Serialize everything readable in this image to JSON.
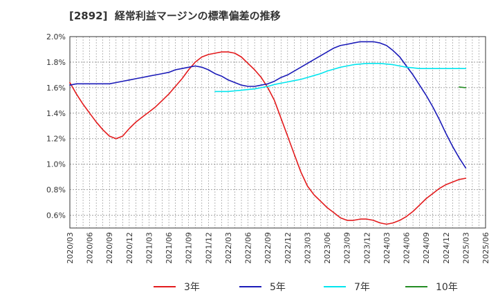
{
  "chart_data": {
    "type": "line",
    "title": "[2892]  経常利益マージンの標準偏差の推移",
    "xlabel": "",
    "ylabel": "",
    "ylim": [
      0.5,
      2.0
    ],
    "y_ticks": [
      0.6,
      0.8,
      1.0,
      1.2,
      1.4,
      1.6,
      1.8,
      2.0
    ],
    "y_tick_labels": [
      "0.6%",
      "0.8%",
      "1.0%",
      "1.2%",
      "1.4%",
      "1.6%",
      "1.8%",
      "2.0%"
    ],
    "x_tick_labels": [
      "2020/03",
      "2020/06",
      "2020/09",
      "2020/12",
      "2021/03",
      "2021/06",
      "2021/09",
      "2021/12",
      "2022/03",
      "2022/06",
      "2022/09",
      "2022/12",
      "2023/03",
      "2023/06",
      "2023/09",
      "2023/12",
      "2024/03",
      "2024/06",
      "2024/09",
      "2024/12",
      "2025/03",
      "2025/06"
    ],
    "grid": true,
    "legend_position": "bottom",
    "series": [
      {
        "name": "3年",
        "color": "#e31a1c",
        "x": [
          "2020/03",
          "2020/04",
          "2020/05",
          "2020/06",
          "2020/07",
          "2020/08",
          "2020/09",
          "2020/10",
          "2020/11",
          "2020/12",
          "2021/01",
          "2021/02",
          "2021/03",
          "2021/04",
          "2021/05",
          "2021/06",
          "2021/07",
          "2021/08",
          "2021/09",
          "2021/10",
          "2021/11",
          "2021/12",
          "2022/01",
          "2022/02",
          "2022/03",
          "2022/04",
          "2022/05",
          "2022/06",
          "2022/07",
          "2022/08",
          "2022/09",
          "2022/10",
          "2022/11",
          "2022/12",
          "2023/01",
          "2023/02",
          "2023/03",
          "2023/04",
          "2023/05",
          "2023/06",
          "2023/07",
          "2023/08",
          "2023/09",
          "2023/10",
          "2023/11",
          "2023/12",
          "2024/01",
          "2024/02",
          "2024/03",
          "2024/04",
          "2024/05",
          "2024/06",
          "2024/07",
          "2024/08",
          "2024/09",
          "2024/10",
          "2024/11",
          "2024/12",
          "2025/01",
          "2025/02",
          "2025/03"
        ],
        "values": [
          1.64,
          1.55,
          1.47,
          1.4,
          1.33,
          1.27,
          1.22,
          1.2,
          1.22,
          1.28,
          1.33,
          1.37,
          1.41,
          1.45,
          1.5,
          1.55,
          1.61,
          1.67,
          1.74,
          1.8,
          1.84,
          1.86,
          1.87,
          1.88,
          1.88,
          1.87,
          1.84,
          1.79,
          1.74,
          1.68,
          1.6,
          1.5,
          1.36,
          1.22,
          1.08,
          0.94,
          0.83,
          0.76,
          0.71,
          0.66,
          0.62,
          0.58,
          0.56,
          0.56,
          0.57,
          0.57,
          0.56,
          0.54,
          0.53,
          0.54,
          0.56,
          0.59,
          0.63,
          0.68,
          0.73,
          0.77,
          0.81,
          0.84,
          0.86,
          0.88,
          0.89
        ]
      },
      {
        "name": "5年",
        "color": "#1a1ab8",
        "x": [
          "2020/03",
          "2020/04",
          "2020/05",
          "2020/06",
          "2020/07",
          "2020/08",
          "2020/09",
          "2020/10",
          "2020/11",
          "2020/12",
          "2021/01",
          "2021/02",
          "2021/03",
          "2021/04",
          "2021/05",
          "2021/06",
          "2021/07",
          "2021/08",
          "2021/09",
          "2021/10",
          "2021/11",
          "2021/12",
          "2022/01",
          "2022/02",
          "2022/03",
          "2022/04",
          "2022/05",
          "2022/06",
          "2022/07",
          "2022/08",
          "2022/09",
          "2022/10",
          "2022/11",
          "2022/12",
          "2023/01",
          "2023/02",
          "2023/03",
          "2023/04",
          "2023/05",
          "2023/06",
          "2023/07",
          "2023/08",
          "2023/09",
          "2023/10",
          "2023/11",
          "2023/12",
          "2024/01",
          "2024/02",
          "2024/03",
          "2024/04",
          "2024/05",
          "2024/06",
          "2024/07",
          "2024/08",
          "2024/09",
          "2024/10",
          "2024/11",
          "2024/12",
          "2025/01",
          "2025/02",
          "2025/03"
        ],
        "values": [
          1.62,
          1.63,
          1.63,
          1.63,
          1.63,
          1.63,
          1.63,
          1.64,
          1.65,
          1.66,
          1.67,
          1.68,
          1.69,
          1.7,
          1.71,
          1.72,
          1.74,
          1.75,
          1.76,
          1.77,
          1.76,
          1.74,
          1.71,
          1.69,
          1.66,
          1.64,
          1.62,
          1.61,
          1.61,
          1.62,
          1.63,
          1.65,
          1.68,
          1.7,
          1.73,
          1.76,
          1.79,
          1.82,
          1.85,
          1.88,
          1.91,
          1.93,
          1.94,
          1.95,
          1.96,
          1.96,
          1.96,
          1.95,
          1.93,
          1.89,
          1.84,
          1.77,
          1.7,
          1.62,
          1.54,
          1.45,
          1.35,
          1.24,
          1.14,
          1.05,
          0.97
        ]
      },
      {
        "name": "7年",
        "color": "#00e5ee",
        "x": [
          "2022/01",
          "2022/02",
          "2022/03",
          "2022/04",
          "2022/05",
          "2022/06",
          "2022/07",
          "2022/08",
          "2022/09",
          "2022/10",
          "2022/11",
          "2022/12",
          "2023/01",
          "2023/02",
          "2023/03",
          "2023/04",
          "2023/05",
          "2023/06",
          "2023/07",
          "2023/08",
          "2023/09",
          "2023/10",
          "2023/11",
          "2023/12",
          "2024/01",
          "2024/02",
          "2024/03",
          "2024/04",
          "2024/05",
          "2024/06",
          "2024/07",
          "2024/08",
          "2024/09",
          "2024/10",
          "2024/11",
          "2024/12",
          "2025/01",
          "2025/02",
          "2025/03"
        ],
        "values": [
          1.57,
          1.57,
          1.57,
          1.575,
          1.58,
          1.585,
          1.59,
          1.6,
          1.61,
          1.625,
          1.635,
          1.645,
          1.655,
          1.665,
          1.68,
          1.695,
          1.71,
          1.73,
          1.745,
          1.76,
          1.77,
          1.78,
          1.785,
          1.79,
          1.79,
          1.79,
          1.785,
          1.78,
          1.77,
          1.76,
          1.755,
          1.75,
          1.75,
          1.75,
          1.75,
          1.75,
          1.75,
          1.75,
          1.75
        ]
      },
      {
        "name": "10年",
        "color": "#228b22",
        "x": [
          "2025/02",
          "2025/03"
        ],
        "values": [
          1.605,
          1.6
        ]
      }
    ]
  }
}
